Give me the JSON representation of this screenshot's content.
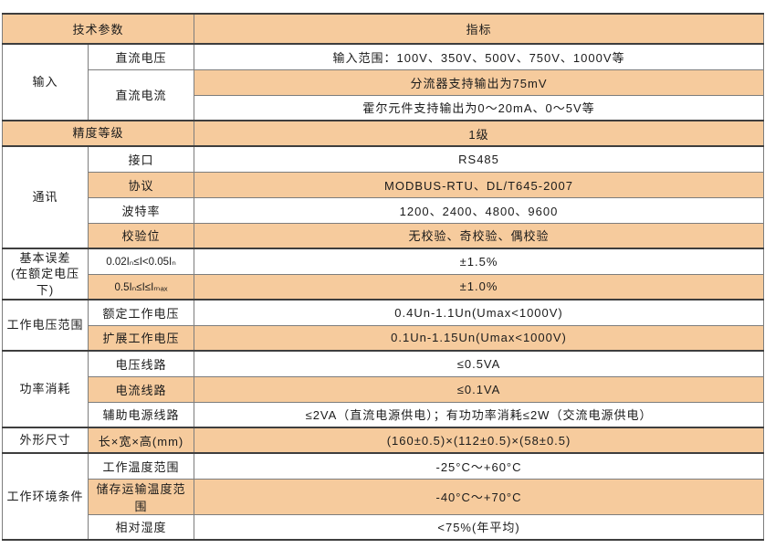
{
  "table": {
    "colors": {
      "row_shaded": "#f6cb9d",
      "border_dark": "#3e3e3e",
      "border_minor": "#7d7d7d",
      "border_outer": "#8a8a8a",
      "text": "#1b1b1b"
    },
    "header": {
      "params_label": "技术参数",
      "index_label": "指标"
    },
    "sections": [
      {
        "label": "输入",
        "rows": [
          {
            "param": "直流电压",
            "value": "输入范围：100V、350V、500V、750V、1000V等"
          },
          {
            "param": "直流电流",
            "value": "分流器支持输出为75mV"
          },
          {
            "value": "霍尔元件支持输出为0～20mA、0～5V等"
          }
        ]
      },
      {
        "label": "精度等级",
        "rows": [
          {
            "value": "1级"
          }
        ]
      },
      {
        "label": "通讯",
        "rows": [
          {
            "param": "接口",
            "value": "RS485"
          },
          {
            "param": "协议",
            "value": "MODBUS-RTU、DL/T645-2007"
          },
          {
            "param": "波特率",
            "value": "1200、2400、4800、9600"
          },
          {
            "param": "校验位",
            "value": "无校验、奇校验、偶校验"
          }
        ]
      },
      {
        "label": "基本误差\n(在额定电压下)",
        "rows": [
          {
            "param": "0.02Iₙ≤I<0.05Iₙ",
            "value": "±1.5%"
          },
          {
            "param": "0.5Iₙ≤I≤Iₘₐₓ",
            "value": "±1.0%"
          }
        ]
      },
      {
        "label": "工作电压范围",
        "rows": [
          {
            "param": "额定工作电压",
            "value": "0.4Un-1.1Un(Umax<1000V)"
          },
          {
            "param": "扩展工作电压",
            "value": "0.1Un-1.15Un(Umax<1000V)"
          }
        ]
      },
      {
        "label": "功率消耗",
        "rows": [
          {
            "param": "电压线路",
            "value": "≤0.5VA"
          },
          {
            "param": "电流线路",
            "value": "≤0.1VA"
          },
          {
            "param": "辅助电源线路",
            "value": "≤2VA（直流电源供电）；有功功率消耗≤2W（交流电源供电）"
          }
        ]
      },
      {
        "label": "外形尺寸",
        "rows": [
          {
            "param": "长×宽×高(mm)",
            "value": "(160±0.5)×(112±0.5)×(58±0.5)"
          }
        ]
      },
      {
        "label": "工作环境条件",
        "rows": [
          {
            "param": "工作温度范围",
            "value": "-25°C～+60°C"
          },
          {
            "param": "储存运输温度范围",
            "value": "-40°C～+70°C"
          },
          {
            "param": "相对湿度",
            "value": "<75%(年平均)"
          }
        ]
      }
    ]
  }
}
